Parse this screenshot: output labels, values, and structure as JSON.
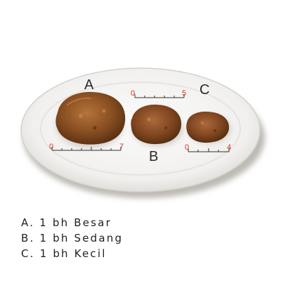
{
  "photo": {
    "plate_labels": {
      "a": "A",
      "b": "B",
      "c": "C"
    },
    "rulers": {
      "a": {
        "start": "0",
        "end": "7"
      },
      "b": {
        "start": "0",
        "end": "5"
      },
      "c": {
        "start": "0",
        "end": "4"
      }
    }
  },
  "legend": [
    "A. 1 bh Besar",
    "B. 1 bh Sedang",
    "C. 1 bh Kecil"
  ]
}
